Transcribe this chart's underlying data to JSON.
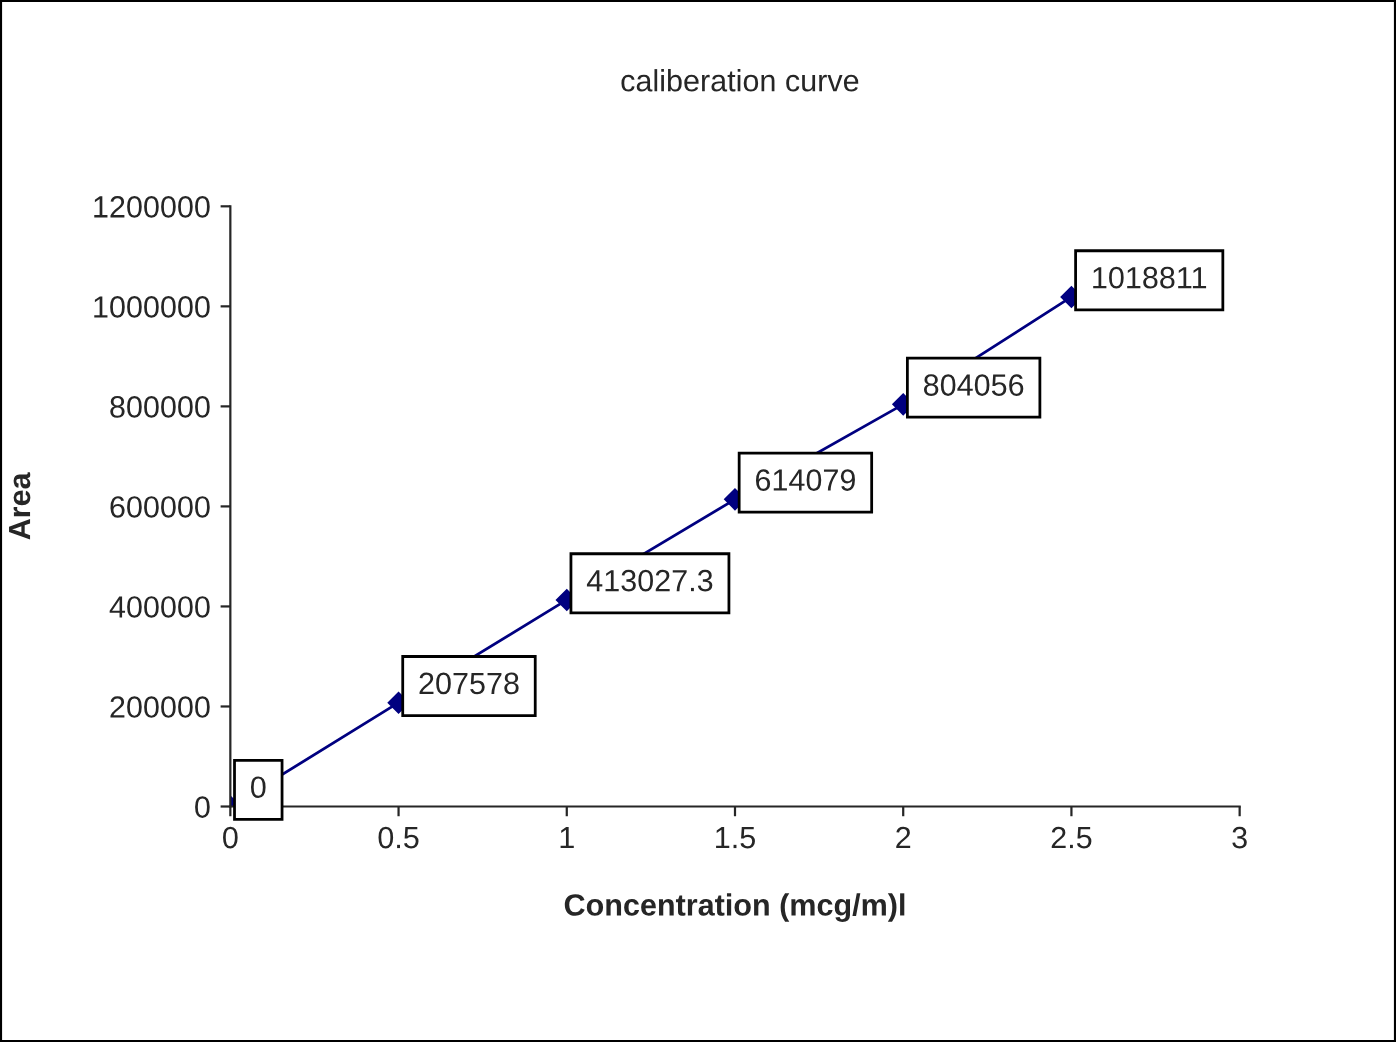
{
  "chart_data": {
    "type": "line",
    "title": "caliberation curve",
    "xlabel": "Concentration (mcg/m)l",
    "ylabel": "Area",
    "x": [
      0,
      0.5,
      1,
      1.5,
      2,
      2.5
    ],
    "series": [
      {
        "color": "#000080",
        "values": [
          0,
          207578,
          413027.3,
          614079,
          804056,
          1018811
        ]
      }
    ],
    "data_labels": true,
    "marker": "diamond",
    "line_style": "solid",
    "grid": false,
    "legend": false,
    "xlim": [
      0,
      3
    ],
    "xticks": [
      0,
      0.5,
      1,
      1.5,
      2,
      2.5,
      3
    ],
    "ylim": [
      0,
      1200000
    ],
    "yticks": [
      0,
      200000,
      400000,
      600000,
      800000,
      1000000,
      1200000
    ]
  }
}
